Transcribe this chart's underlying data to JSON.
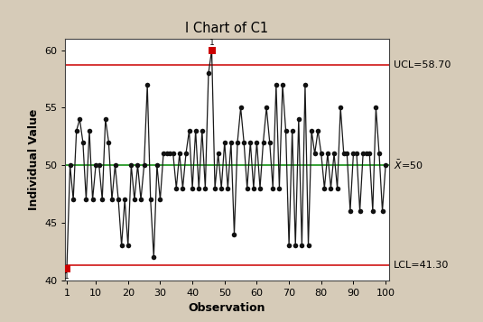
{
  "title": "I Chart of C1",
  "xlabel": "Observation",
  "ylabel": "Individual Value",
  "UCL": 58.7,
  "LCL": 41.3,
  "mean": 50.0,
  "ylim": [
    40,
    61
  ],
  "xlim": [
    0.5,
    101
  ],
  "bg_color": "#d6cbb8",
  "plot_bg": "#ffffff",
  "ucl_color": "#cc0000",
  "lcl_color": "#cc0000",
  "mean_color": "#008800",
  "line_color": "#1a1a1a",
  "marker_color": "#111111",
  "outlier_color": "#cc0000",
  "values": [
    41,
    50,
    47,
    53,
    54,
    52,
    47,
    53,
    47,
    50,
    50,
    47,
    54,
    52,
    47,
    50,
    47,
    43,
    47,
    43,
    50,
    47,
    50,
    47,
    50,
    57,
    47,
    42,
    50,
    47,
    51,
    51,
    51,
    51,
    48,
    51,
    48,
    51,
    53,
    48,
    53,
    48,
    53,
    48,
    58,
    60,
    48,
    51,
    48,
    52,
    48,
    52,
    44,
    52,
    55,
    52,
    48,
    52,
    48,
    52,
    48,
    52,
    55,
    52,
    48,
    57,
    48,
    57,
    53,
    43,
    53,
    43,
    54,
    43,
    57,
    43,
    53,
    51,
    53,
    51,
    48,
    51,
    48,
    51,
    48,
    55,
    51,
    51,
    46,
    51,
    51,
    46,
    51,
    51,
    51,
    46,
    55,
    51,
    46,
    50
  ],
  "outlier_indices": [
    0,
    45
  ],
  "xticks": [
    1,
    10,
    20,
    30,
    40,
    50,
    60,
    70,
    80,
    90,
    100
  ],
  "yticks": [
    40,
    45,
    50,
    55,
    60
  ]
}
